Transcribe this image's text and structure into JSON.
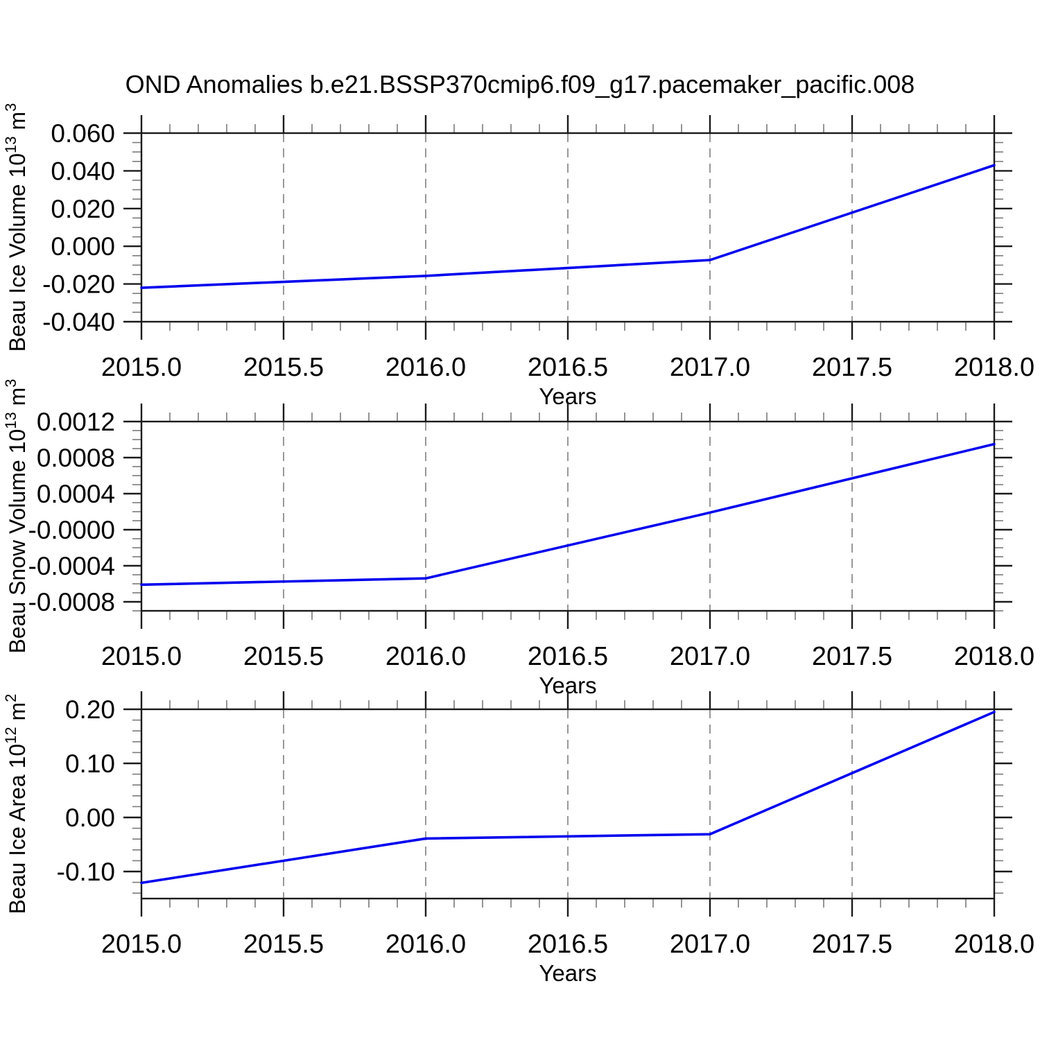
{
  "title": "OND Anomalies b.e21.BSSP370cmip6.f09_g17.pacemaker_pacific.008",
  "style": {
    "line_color": "#0000ee",
    "grid_color": "#8d8d8d",
    "axis_color": "#1a1a1a"
  },
  "chart_data": [
    {
      "type": "line",
      "name": "beau-ice-volume",
      "xlabel": "Years",
      "ylabel_text": "Beau Ice Volume 10^13 m^3",
      "ylabel_parts": [
        {
          "t": "Beau Ice Volume 10"
        },
        {
          "t": "13",
          "sup": true
        },
        {
          "t": " m"
        },
        {
          "t": "3",
          "sup": true
        }
      ],
      "x": [
        2015,
        2016,
        2017,
        2018
      ],
      "values": [
        -0.022,
        -0.0157,
        -0.0073,
        0.043
      ],
      "xlim": [
        2015.0,
        2018.0
      ],
      "ylim": [
        -0.04,
        0.06
      ],
      "x_tick_labels": [
        "2015.0",
        "2015.5",
        "2016.0",
        "2016.5",
        "2017.0",
        "2017.5",
        "2018.0"
      ],
      "x_minor_step": 0.1,
      "x_major_every": 5,
      "y_tick_labels": [
        "0.060",
        "0.040",
        "0.020",
        "0.000",
        "-0.020",
        "-0.040"
      ],
      "y_minor_step": 0.005,
      "y_major_every": 4,
      "gridlines_x": [
        2015.5,
        2016.0,
        2016.5,
        2017.0,
        2017.5
      ],
      "line_color": "#0000ee",
      "grid_on": true,
      "legend": "none"
    },
    {
      "type": "line",
      "name": "beau-snow-volume",
      "xlabel": "Years",
      "ylabel_text": "Beau Snow Volume 10^13 m^3",
      "ylabel_parts": [
        {
          "t": "Beau Snow Volume 10"
        },
        {
          "t": "13",
          "sup": true
        },
        {
          "t": " m"
        },
        {
          "t": "3",
          "sup": true
        }
      ],
      "x": [
        2015,
        2016,
        2017,
        2018
      ],
      "values": [
        -0.00061,
        -0.00054,
        0.00019,
        0.00095
      ],
      "xlim": [
        2015.0,
        2018.0
      ],
      "ylim": [
        -0.0009,
        0.0012
      ],
      "x_tick_labels": [
        "2015.0",
        "2015.5",
        "2016.0",
        "2016.5",
        "2017.0",
        "2017.5",
        "2018.0"
      ],
      "x_minor_step": 0.1,
      "x_major_every": 5,
      "y_tick_labels": [
        "0.0012",
        "0.0008",
        "0.0004",
        "-0.0000",
        "-0.0004",
        "-0.0008"
      ],
      "y_minor_step": 0.0001,
      "y_major_every": 4,
      "gridlines_x": [
        2015.5,
        2016.0,
        2016.5,
        2017.0,
        2017.5
      ],
      "line_color": "#0000ee",
      "grid_on": true,
      "legend": "none"
    },
    {
      "type": "line",
      "name": "beau-ice-area",
      "xlabel": "Years",
      "ylabel_text": "Beau Ice Area 10^12 m^2",
      "ylabel_parts": [
        {
          "t": "Beau Ice Area 10"
        },
        {
          "t": "12",
          "sup": true
        },
        {
          "t": " m"
        },
        {
          "t": "2",
          "sup": true
        }
      ],
      "x": [
        2015,
        2016,
        2017,
        2018
      ],
      "values": [
        -0.121,
        -0.039,
        -0.031,
        0.195
      ],
      "xlim": [
        2015.0,
        2018.0
      ],
      "ylim": [
        -0.15,
        0.2
      ],
      "x_tick_labels": [
        "2015.0",
        "2015.5",
        "2016.0",
        "2016.5",
        "2017.0",
        "2017.5",
        "2018.0"
      ],
      "x_minor_step": 0.1,
      "x_major_every": 5,
      "y_tick_labels": [
        "0.20",
        "0.10",
        "0.00",
        "-0.10"
      ],
      "y_minor_step": 0.02,
      "y_major_every": 5,
      "gridlines_x": [
        2015.5,
        2016.0,
        2016.5,
        2017.0,
        2017.5
      ],
      "line_color": "#0000ee",
      "grid_on": true,
      "legend": "none"
    }
  ]
}
